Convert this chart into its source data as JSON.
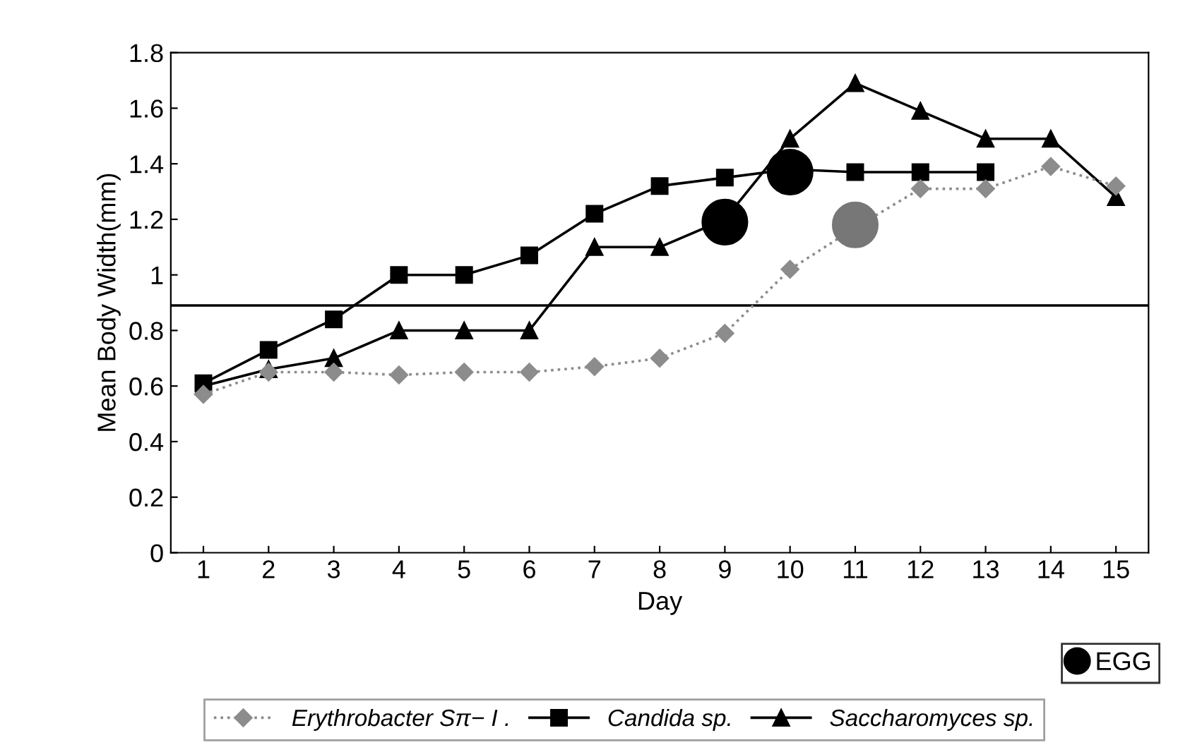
{
  "chart_data": {
    "type": "line",
    "xlabel": "Day",
    "ylabel": "Mean Body Width(mm)",
    "categories": [
      "1",
      "2",
      "3",
      "4",
      "5",
      "6",
      "7",
      "8",
      "9",
      "10",
      "11",
      "12",
      "13",
      "14",
      "15"
    ],
    "series": [
      {
        "name": "Erythrobacter Sπ− I .",
        "color": "#8c8c8c",
        "marker": "diamond",
        "line_style": "dotted",
        "values": [
          0.57,
          0.65,
          0.65,
          0.64,
          0.65,
          0.65,
          0.67,
          0.7,
          0.79,
          1.02,
          1.17,
          1.31,
          1.31,
          1.39,
          1.32
        ]
      },
      {
        "name": "Candida sp.",
        "color": "#000000",
        "marker": "square",
        "line_style": "solid",
        "values": [
          0.61,
          0.73,
          0.84,
          1.0,
          1.0,
          1.07,
          1.22,
          1.32,
          1.35,
          1.38,
          1.37,
          1.37,
          1.37,
          null,
          null
        ]
      },
      {
        "name": "Saccharomyces sp.",
        "color": "#000000",
        "marker": "triangle",
        "line_style": "solid",
        "values": [
          0.6,
          0.66,
          0.7,
          0.8,
          0.8,
          0.8,
          1.1,
          1.1,
          1.2,
          1.49,
          1.69,
          1.59,
          1.49,
          1.49,
          1.28
        ]
      },
      {
        "name": "EGG",
        "type": "scatter",
        "marker": "circle",
        "color": "#000000",
        "x": [
          "9",
          "10",
          "11"
        ],
        "colors": [
          "#000000",
          "#000000",
          "#777777"
        ],
        "values": [
          1.19,
          1.37,
          1.18
        ]
      }
    ],
    "ylim": [
      0,
      1.8
    ],
    "yticks": [
      0,
      0.2,
      0.4,
      0.6,
      0.8,
      1,
      1.2,
      1.4,
      1.6,
      1.8
    ],
    "ref_lines": [
      {
        "axis": "y",
        "value": 0.89,
        "color": "#000000",
        "line_style": "solid"
      }
    ],
    "grid": false,
    "legend": "bottom"
  }
}
